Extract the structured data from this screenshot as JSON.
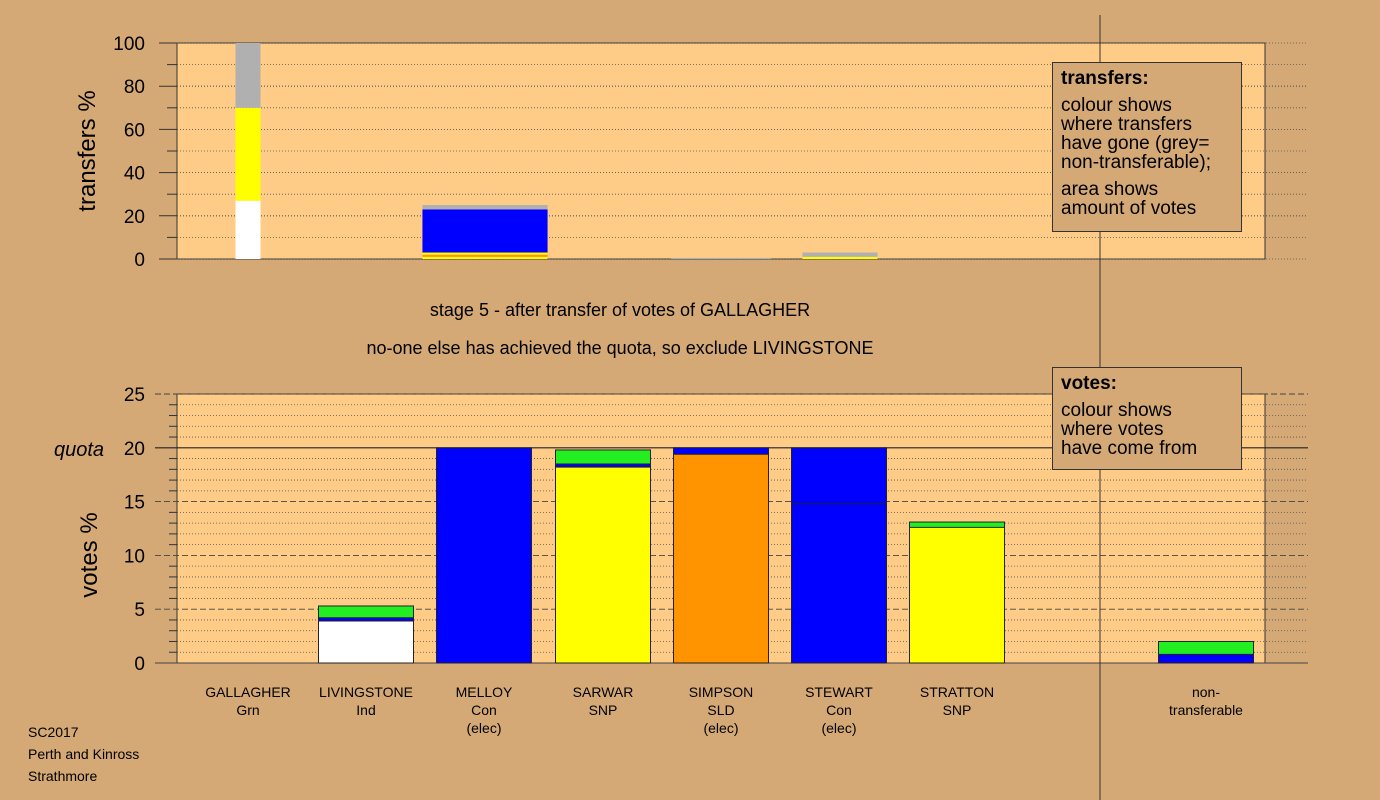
{
  "heading": {
    "stage": "stage 5 - after transfer of votes of GALLAGHER",
    "note": "no-one else has achieved the quota, so exclude LIVINGSTONE"
  },
  "legend_transfers": {
    "title": "transfers:",
    "lines": [
      "colour shows",
      "where transfers",
      "have gone (grey=",
      "non-transferable);"
    ],
    "lines2": [
      "area shows",
      "amount of votes"
    ]
  },
  "legend_votes": {
    "title": "votes:",
    "lines": [
      "colour shows",
      "where votes",
      "have come from"
    ]
  },
  "footer": [
    "SC2017",
    "Perth and Kinross",
    "Strathmore"
  ],
  "candidates": [
    {
      "name": "GALLAGHER",
      "party": "Grn",
      "status": ""
    },
    {
      "name": "LIVINGSTONE",
      "party": "Ind",
      "status": ""
    },
    {
      "name": "MELLOY",
      "party": "Con",
      "status": "(elec)"
    },
    {
      "name": "SARWAR",
      "party": "SNP",
      "status": ""
    },
    {
      "name": "SIMPSON",
      "party": "SLD",
      "status": "(elec)"
    },
    {
      "name": "STEWART",
      "party": "Con",
      "status": "(elec)"
    },
    {
      "name": "STRATTON",
      "party": "SNP",
      "status": ""
    },
    {
      "name": "non-",
      "party": "transferable",
      "status": ""
    }
  ],
  "colors": {
    "background": "#d4a976",
    "plot": "#ffcc88",
    "Con": "#0000ff",
    "SNP": "#ffff00",
    "SLD": "#ff9400",
    "Grn": "#22ee22",
    "Ind": "#ffffff",
    "nontransferable": "#b0b0b0"
  },
  "chart_data": [
    {
      "type": "bar",
      "ylabel": "transfers %",
      "ylim": [
        0,
        100
      ],
      "yticks": [
        0,
        20,
        40,
        60,
        80,
        100
      ],
      "description_stack": "stacked transfer bars",
      "bars": [
        {
          "candidate": "GALLAGHER",
          "width_share": 0.02,
          "segments": [
            {
              "color": "#ffffff",
              "from": 0,
              "to": 27
            },
            {
              "color": "#ffff00",
              "from": 27,
              "to": 70
            },
            {
              "color": "#b0b0b0",
              "from": 70,
              "to": 100
            }
          ]
        },
        {
          "candidate": "MELLOY",
          "width_share": 0.1,
          "segments": [
            {
              "color": "#ffff00",
              "from": 0,
              "to": 1
            },
            {
              "color": "#ff9400",
              "from": 1,
              "to": 2
            },
            {
              "color": "#ffff00",
              "from": 2,
              "to": 3
            },
            {
              "color": "#0000ff",
              "from": 3,
              "to": 23
            },
            {
              "color": "#b0b0b0",
              "from": 23,
              "to": 25
            }
          ]
        },
        {
          "candidate": "SIMPSON",
          "width_share": 0.08,
          "segments": [
            {
              "color": "#b0b0b0",
              "from": 0,
              "to": 0.5
            }
          ]
        },
        {
          "candidate": "STEWART",
          "width_share": 0.06,
          "segments": [
            {
              "color": "#ffff00",
              "from": 0,
              "to": 1
            },
            {
              "color": "#b0b0b0",
              "from": 1,
              "to": 3
            }
          ]
        }
      ]
    },
    {
      "type": "bar",
      "ylabel": "votes %",
      "ylim": [
        0,
        25
      ],
      "yticks": [
        0,
        5,
        10,
        15,
        20,
        25
      ],
      "quota": 20,
      "quota_label": "quota",
      "categories": [
        "GALLAGHER",
        "LIVINGSTONE",
        "MELLOY",
        "SARWAR",
        "SIMPSON",
        "STEWART",
        "STRATTON",
        "non-transferable"
      ],
      "bars": [
        {
          "candidate": "GALLAGHER",
          "segments": []
        },
        {
          "candidate": "LIVINGSTONE",
          "segments": [
            {
              "color": "#ffffff",
              "value": 3.9
            },
            {
              "color": "#0000ff",
              "value": 0.3
            },
            {
              "color": "#22ee22",
              "value": 1.1
            }
          ]
        },
        {
          "candidate": "MELLOY",
          "segments": [
            {
              "color": "#0000ff",
              "value": 20.0
            }
          ]
        },
        {
          "candidate": "SARWAR",
          "segments": [
            {
              "color": "#ffff00",
              "value": 18.2
            },
            {
              "color": "#0000ff",
              "value": 0.3
            },
            {
              "color": "#22ee22",
              "value": 1.3
            }
          ]
        },
        {
          "candidate": "SIMPSON",
          "segments": [
            {
              "color": "#ff9400",
              "value": 19.4
            },
            {
              "color": "#0000ff",
              "value": 0.6
            }
          ]
        },
        {
          "candidate": "STEWART",
          "segments": [
            {
              "color": "#0000ff",
              "value": 14.8
            },
            {
              "color": "#0000ff",
              "value": 5.2
            }
          ]
        },
        {
          "candidate": "STRATTON",
          "segments": [
            {
              "color": "#ffff00",
              "value": 12.6
            },
            {
              "color": "#22ee22",
              "value": 0.5
            }
          ]
        },
        {
          "candidate": "non-transferable",
          "segments": [
            {
              "color": "#0000ff",
              "value": 0.8
            },
            {
              "color": "#22ee22",
              "value": 1.2
            }
          ]
        }
      ]
    }
  ]
}
